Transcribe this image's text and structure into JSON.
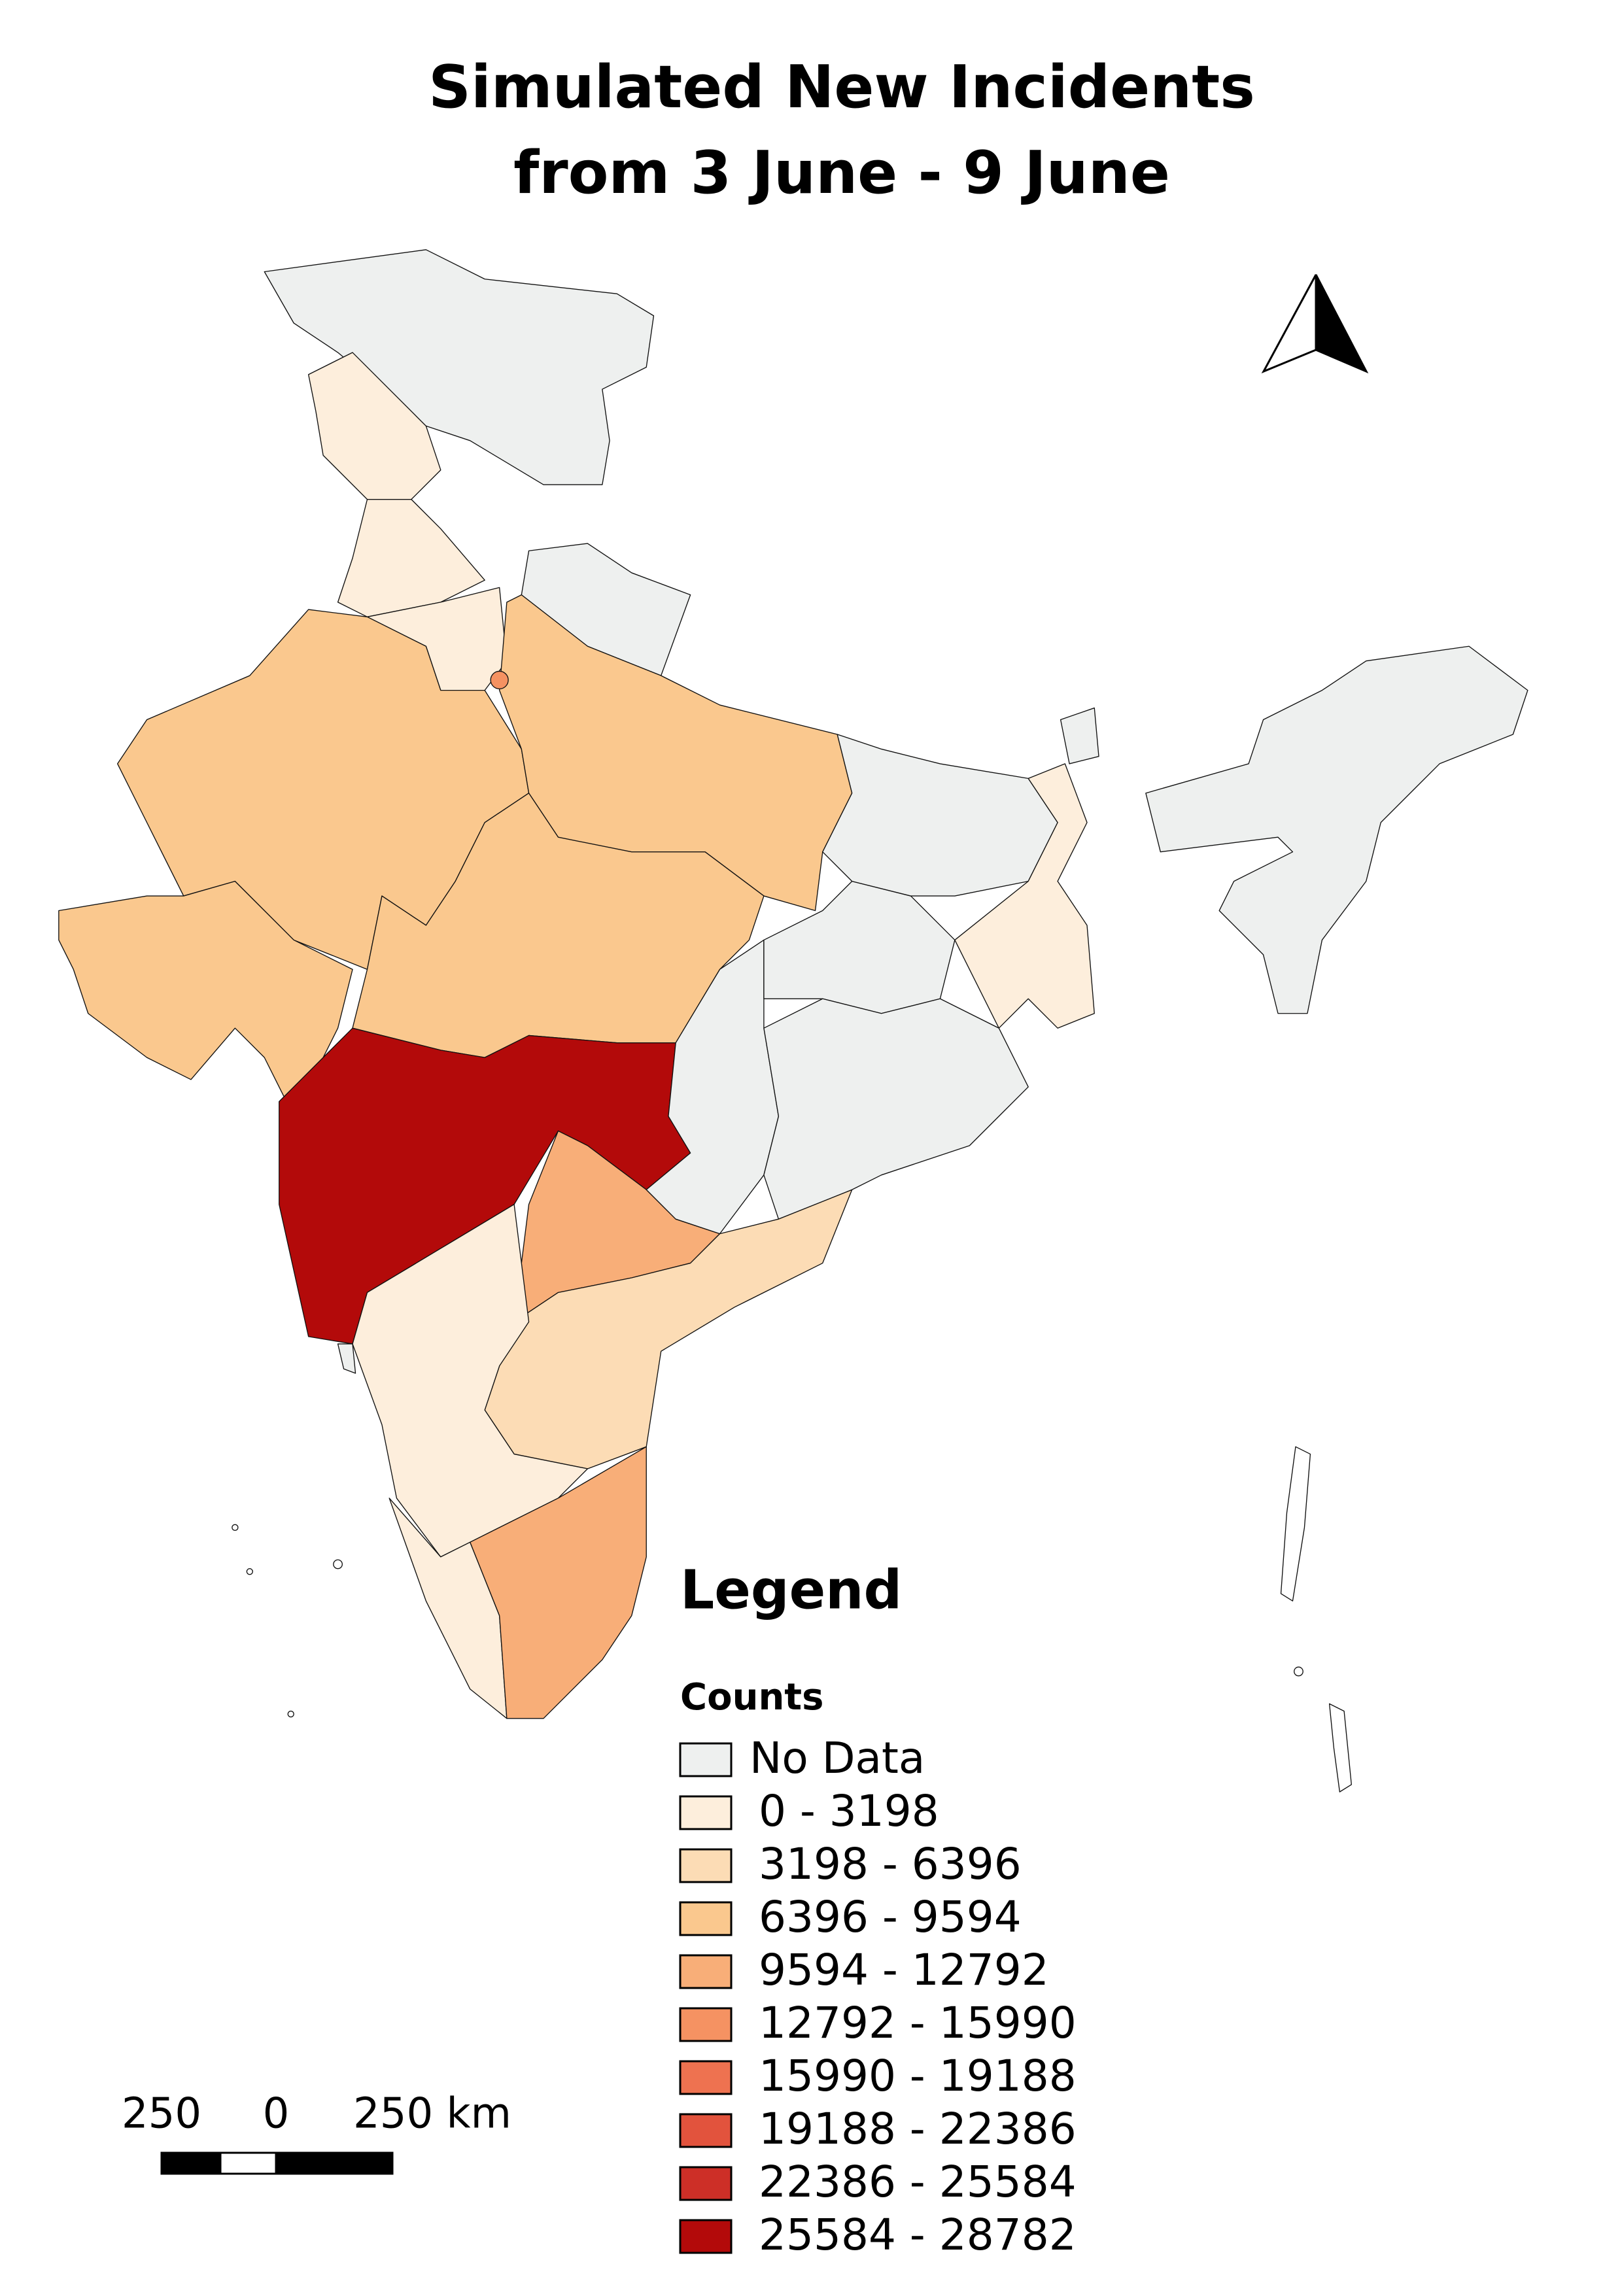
{
  "title": [
    "Simulated New Incidents",
    "from 3 June - 9 June"
  ],
  "legend": {
    "title": "Legend",
    "subtitle": "Counts",
    "items": [
      {
        "label": "No Data",
        "color": "#eef0ef"
      },
      {
        "label": " 0 - 3198",
        "color": "#fdeedc"
      },
      {
        "label": "3198 - 6396",
        "color": "#fcdcb5"
      },
      {
        "label": "6396 - 9594",
        "color": "#fac88e"
      },
      {
        "label": "9594 - 12792",
        "color": "#f8ae78"
      },
      {
        "label": "12792 - 15990",
        "color": "#f59262"
      },
      {
        "label": "15990 - 19188",
        "color": "#ee7250"
      },
      {
        "label": "19188 - 22386",
        "color": "#e2533d"
      },
      {
        "label": "22386 - 25584",
        "color": "#cd2f27"
      },
      {
        "label": "25584 - 28782",
        "color": "#b30a0a"
      }
    ]
  },
  "scale_bar": {
    "labels": [
      "250",
      "0",
      "250 km"
    ]
  }
}
